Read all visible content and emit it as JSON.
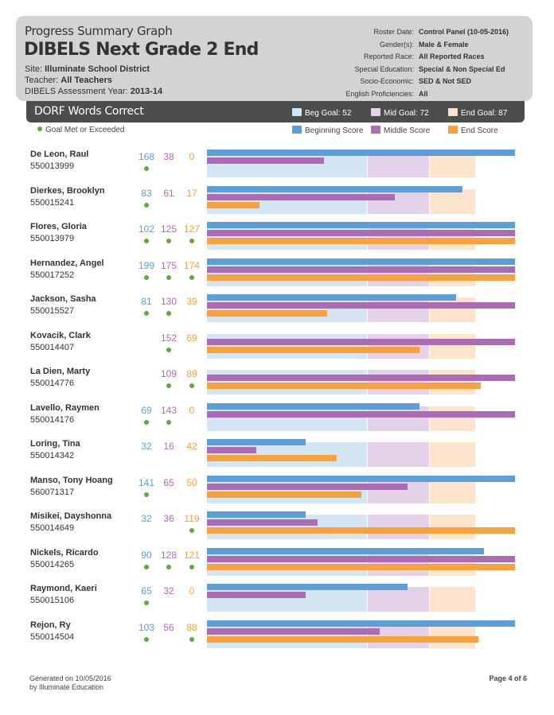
{
  "header": {
    "subtitle": "Progress Summary Graph",
    "title": "DIBELS Next Grade 2 End",
    "site_label": "Site:",
    "site": "Illuminate School District",
    "teacher_label": "Teacher:",
    "teacher": "All Teachers",
    "year_label": "DIBELS Assessment Year:",
    "year": "2013-14",
    "criteria": [
      {
        "label": "Roster Date:",
        "value": "Control Panel (10-05-2016)"
      },
      {
        "label": "Gender(s):",
        "value": "Male & Female"
      },
      {
        "label": "Reported Race:",
        "value": "All Reported Races"
      },
      {
        "label": "Special Education:",
        "value": "Special & Non Special Ed"
      },
      {
        "label": "Socio-Economic:",
        "value": "SED & Not SED"
      },
      {
        "label": "English Proficiencies:",
        "value": "All"
      }
    ]
  },
  "section": {
    "title": "DORF Words Correct",
    "goals": [
      {
        "label": "Beg Goal: 52",
        "value": 52,
        "color": "#d4e6f4"
      },
      {
        "label": "Mid Goal: 72",
        "value": 72,
        "color": "#e3d2e8"
      },
      {
        "label": "End Goal: 87",
        "value": 87,
        "color": "#fde4cc"
      }
    ]
  },
  "legend": {
    "goal_met": "Goal Met or Exceeded",
    "beginning": "Beginning Score",
    "middle": "Middle Score",
    "end": "End Score"
  },
  "colors": {
    "beginning": "#5b9fd6",
    "middle": "#ad6bb4",
    "end": "#f7a13f",
    "goal_dot": "#5cab3d"
  },
  "chart_data": {
    "type": "bar",
    "x_max": 100,
    "goals": {
      "beginning": 52,
      "middle": 72,
      "end": 87
    },
    "series": [
      {
        "name": "Beginning Score"
      },
      {
        "name": "Middle Score"
      },
      {
        "name": "End Score"
      }
    ],
    "students": [
      {
        "name": "De Leon, Raul",
        "id": "550013999",
        "beg": 168,
        "mid": 38,
        "end": 0,
        "met": [
          true,
          false,
          false
        ]
      },
      {
        "name": "Dierkes, Brooklyn",
        "id": "550015241",
        "beg": 83,
        "mid": 61,
        "end": 17,
        "met": [
          true,
          false,
          false
        ]
      },
      {
        "name": "Flores, Gloria",
        "id": "550013979",
        "beg": 102,
        "mid": 125,
        "end": 127,
        "met": [
          true,
          true,
          true
        ]
      },
      {
        "name": "Hernandez, Angel",
        "id": "550017252",
        "beg": 199,
        "mid": 175,
        "end": 174,
        "met": [
          true,
          true,
          true
        ]
      },
      {
        "name": "Jackson, Sasha",
        "id": "550015527",
        "beg": 81,
        "mid": 130,
        "end": 39,
        "met": [
          true,
          true,
          false
        ]
      },
      {
        "name": "Kovacik, Clark",
        "id": "550014407",
        "beg": null,
        "mid": 152,
        "end": 69,
        "met": [
          false,
          true,
          false
        ]
      },
      {
        "name": "La Dien, Marty",
        "id": "550014776",
        "beg": null,
        "mid": 109,
        "end": 89,
        "met": [
          false,
          true,
          true
        ]
      },
      {
        "name": "Lavello, Raymen",
        "id": "550014176",
        "beg": 69,
        "mid": 143,
        "end": 0,
        "met": [
          true,
          true,
          false
        ]
      },
      {
        "name": "Loring, Tina",
        "id": "550014342",
        "beg": 32,
        "mid": 16,
        "end": 42,
        "met": [
          false,
          false,
          false
        ]
      },
      {
        "name": "Manso, Tony Hoang",
        "id": "560071317",
        "beg": 141,
        "mid": 65,
        "end": 50,
        "met": [
          true,
          false,
          false
        ]
      },
      {
        "name": "Misikei, Dayshonna",
        "id": "550014649",
        "beg": 32,
        "mid": 36,
        "end": 119,
        "met": [
          false,
          false,
          true
        ]
      },
      {
        "name": "Nickels, Ricardo",
        "id": "550014265",
        "beg": 90,
        "mid": 128,
        "end": 121,
        "met": [
          true,
          true,
          true
        ]
      },
      {
        "name": "Raymond, Kaeri",
        "id": "550015106",
        "beg": 65,
        "mid": 32,
        "end": 0,
        "met": [
          true,
          false,
          false
        ]
      },
      {
        "name": "Rejon, Ry",
        "id": "550014504",
        "beg": 103,
        "mid": 56,
        "end": 88,
        "met": [
          true,
          false,
          true
        ]
      }
    ]
  },
  "footer": {
    "generated": "Generated on 10/05/2016",
    "by": "by Illuminate Education",
    "page": "Page 4 of 6"
  }
}
